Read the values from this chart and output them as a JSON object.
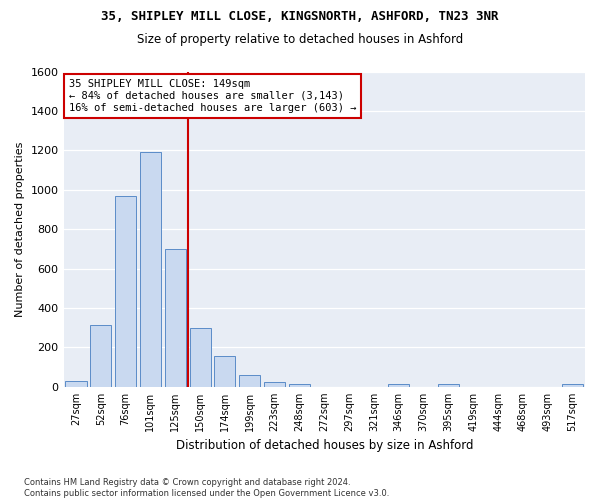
{
  "title_line1": "35, SHIPLEY MILL CLOSE, KINGSNORTH, ASHFORD, TN23 3NR",
  "title_line2": "Size of property relative to detached houses in Ashford",
  "xlabel": "Distribution of detached houses by size in Ashford",
  "ylabel": "Number of detached properties",
  "categories": [
    "27sqm",
    "52sqm",
    "76sqm",
    "101sqm",
    "125sqm",
    "150sqm",
    "174sqm",
    "199sqm",
    "223sqm",
    "248sqm",
    "272sqm",
    "297sqm",
    "321sqm",
    "346sqm",
    "370sqm",
    "395sqm",
    "419sqm",
    "444sqm",
    "468sqm",
    "493sqm",
    "517sqm"
  ],
  "values": [
    30,
    315,
    970,
    1190,
    700,
    300,
    155,
    60,
    25,
    15,
    0,
    0,
    0,
    15,
    0,
    15,
    0,
    0,
    0,
    0,
    15
  ],
  "bar_color": "#c9d9f0",
  "bar_edge_color": "#5b8cc8",
  "vline_color": "#cc0000",
  "annotation_text": "35 SHIPLEY MILL CLOSE: 149sqm\n← 84% of detached houses are smaller (3,143)\n16% of semi-detached houses are larger (603) →",
  "annotation_box_color": "#ffffff",
  "annotation_box_edge": "#cc0000",
  "ylim": [
    0,
    1600
  ],
  "yticks": [
    0,
    200,
    400,
    600,
    800,
    1000,
    1200,
    1400,
    1600
  ],
  "bg_color": "#e8edf5",
  "grid_color": "#ffffff",
  "fig_bg_color": "#ffffff",
  "footnote": "Contains HM Land Registry data © Crown copyright and database right 2024.\nContains public sector information licensed under the Open Government Licence v3.0."
}
